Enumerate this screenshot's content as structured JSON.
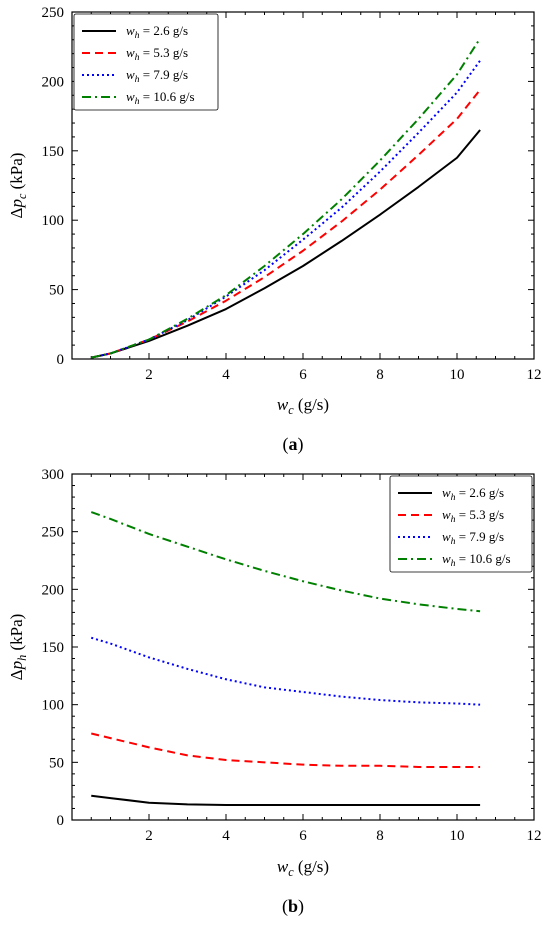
{
  "chart_data": [
    {
      "type": "line",
      "caption": "(a)",
      "caption_letter": "a",
      "xlabel": "w_c (g/s)",
      "ylabel": "Δp_c (kPa)",
      "xlim": [
        0,
        12
      ],
      "ylim": [
        0,
        250
      ],
      "xticks": [
        2,
        4,
        6,
        8,
        10,
        12
      ],
      "yticks": [
        0,
        50,
        100,
        150,
        200,
        250
      ],
      "grid": false,
      "legend_position": "top-left",
      "x": [
        0.5,
        1,
        2,
        3,
        4,
        5,
        6,
        7,
        8,
        9,
        10,
        10.6
      ],
      "series": [
        {
          "name": "w_h = 2.6 g/s",
          "color": "#000000",
          "dash": "solid",
          "values": [
            1,
            4,
            13,
            24,
            36,
            51,
            67,
            85,
            104,
            124,
            145,
            165
          ]
        },
        {
          "name": "w_h = 5.3 g/s",
          "color": "#ff0000",
          "dash": "dashed",
          "values": [
            1,
            4,
            14,
            27,
            42,
            59,
            78,
            99,
            122,
            147,
            173,
            194
          ]
        },
        {
          "name": "w_h = 7.9 g/s",
          "color": "#0000ff",
          "dash": "dotted",
          "values": [
            1,
            4,
            14,
            28,
            45,
            64,
            86,
            109,
            135,
            163,
            192,
            215
          ]
        },
        {
          "name": "w_h = 10.6 g/s",
          "color": "#008000",
          "dash": "dashdot",
          "values": [
            1,
            4,
            14,
            29,
            46,
            67,
            90,
            115,
            143,
            173,
            205,
            231
          ]
        }
      ]
    },
    {
      "type": "line",
      "caption": "(b)",
      "caption_letter": "b",
      "xlabel": "w_c (g/s)",
      "ylabel": "Δp_h (kPa)",
      "xlim": [
        0,
        12
      ],
      "ylim": [
        0,
        300
      ],
      "xticks": [
        2,
        4,
        6,
        8,
        10,
        12
      ],
      "yticks": [
        0,
        50,
        100,
        150,
        200,
        250,
        300
      ],
      "grid": false,
      "legend_position": "top-right",
      "x": [
        0.5,
        1,
        2,
        3,
        4,
        5,
        6,
        7,
        8,
        9,
        10,
        10.6
      ],
      "series": [
        {
          "name": "w_h = 2.6 g/s",
          "color": "#000000",
          "dash": "solid",
          "values": [
            21,
            19,
            15,
            13.5,
            13,
            13,
            13,
            13,
            13,
            13,
            13,
            13
          ]
        },
        {
          "name": "w_h = 5.3 g/s",
          "color": "#ff0000",
          "dash": "dashed",
          "values": [
            75,
            71,
            63,
            56,
            52,
            50,
            48,
            47,
            47,
            46,
            46,
            46
          ]
        },
        {
          "name": "w_h = 7.9 g/s",
          "color": "#0000ff",
          "dash": "dotted",
          "values": [
            158,
            153,
            141,
            131,
            122,
            115,
            111,
            107,
            104,
            102,
            101,
            100
          ]
        },
        {
          "name": "w_h = 10.6 g/s",
          "color": "#008000",
          "dash": "dashdot",
          "values": [
            267,
            261,
            248,
            237,
            226,
            216,
            207,
            199,
            192,
            187,
            183,
            181
          ]
        }
      ]
    }
  ]
}
